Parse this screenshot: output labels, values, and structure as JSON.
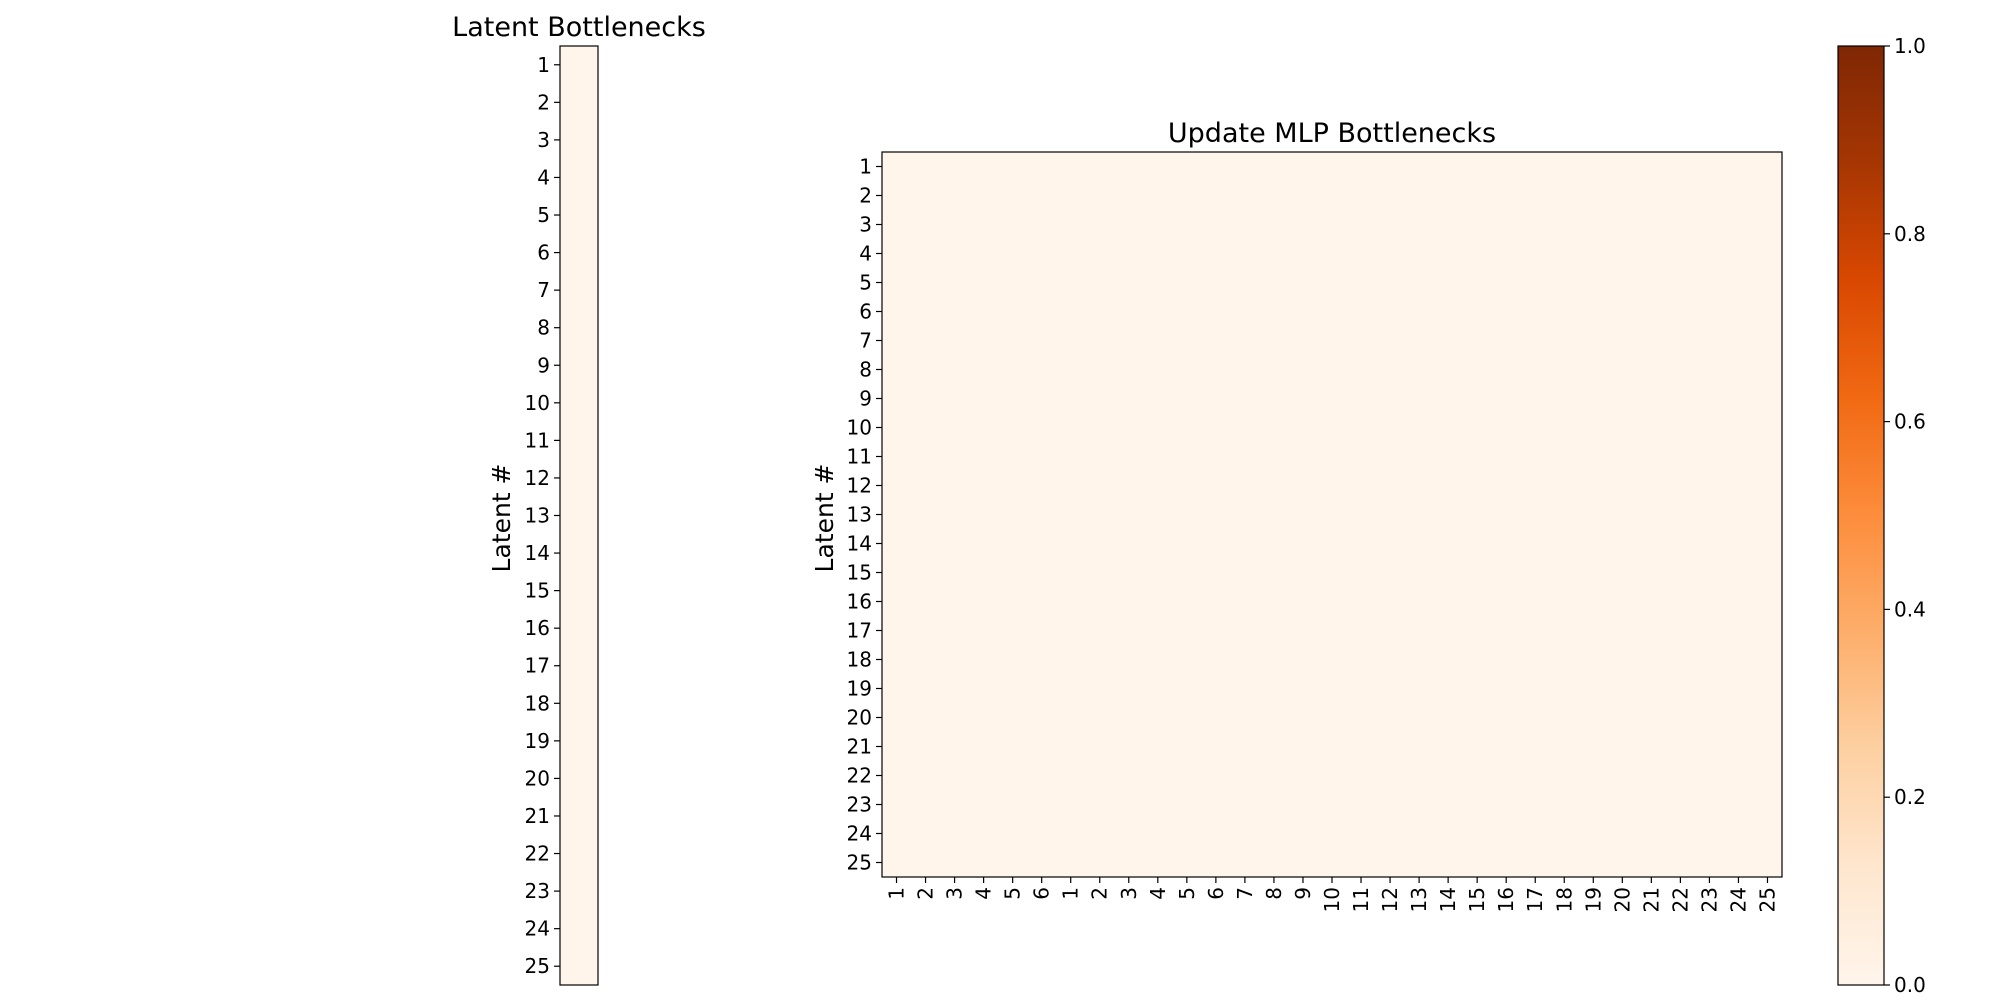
{
  "chart_data": [
    {
      "type": "heatmap",
      "title": "Latent Bottlenecks",
      "ylabel": "Latent #",
      "xlabel": "",
      "rows": [
        "1",
        "2",
        "3",
        "4",
        "5",
        "6",
        "7",
        "8",
        "9",
        "10",
        "11",
        "12",
        "13",
        "14",
        "15",
        "16",
        "17",
        "18",
        "19",
        "20",
        "21",
        "22",
        "23",
        "24",
        "25"
      ],
      "columns": [
        ""
      ],
      "values": [
        [
          0
        ],
        [
          0
        ],
        [
          0
        ],
        [
          0
        ],
        [
          0
        ],
        [
          0
        ],
        [
          0
        ],
        [
          0
        ],
        [
          0
        ],
        [
          0
        ],
        [
          0
        ],
        [
          0
        ],
        [
          0
        ],
        [
          0
        ],
        [
          0
        ],
        [
          0
        ],
        [
          0
        ],
        [
          0
        ],
        [
          0
        ],
        [
          0
        ],
        [
          0
        ],
        [
          0
        ],
        [
          0
        ],
        [
          0
        ],
        [
          0
        ]
      ],
      "vmin": 0,
      "vmax": 1
    },
    {
      "type": "heatmap",
      "title": "Update MLP Bottlenecks",
      "ylabel": "Latent #",
      "xlabel": "",
      "rows": [
        "1",
        "2",
        "3",
        "4",
        "5",
        "6",
        "7",
        "8",
        "9",
        "10",
        "11",
        "12",
        "13",
        "14",
        "15",
        "16",
        "17",
        "18",
        "19",
        "20",
        "21",
        "22",
        "23",
        "24",
        "25"
      ],
      "columns": [
        "1",
        "2",
        "3",
        "4",
        "5",
        "6",
        "1",
        "2",
        "3",
        "4",
        "5",
        "6",
        "7",
        "8",
        "9",
        "10",
        "11",
        "12",
        "13",
        "14",
        "15",
        "16",
        "17",
        "18",
        "19",
        "20",
        "21",
        "22",
        "23",
        "24",
        "25"
      ],
      "value_all": 0,
      "vmin": 0,
      "vmax": 1
    }
  ],
  "colorbar": {
    "colormap": "Oranges",
    "min": 0.0,
    "max": 1.0,
    "ticks": [
      "0.0",
      "0.2",
      "0.4",
      "0.6",
      "0.8",
      "1.0"
    ],
    "stops": [
      "#fff5eb",
      "#fee6ce",
      "#fdd0a2",
      "#fdae6b",
      "#fd8d3c",
      "#f16913",
      "#d94801",
      "#a63603",
      "#7f2704"
    ]
  }
}
